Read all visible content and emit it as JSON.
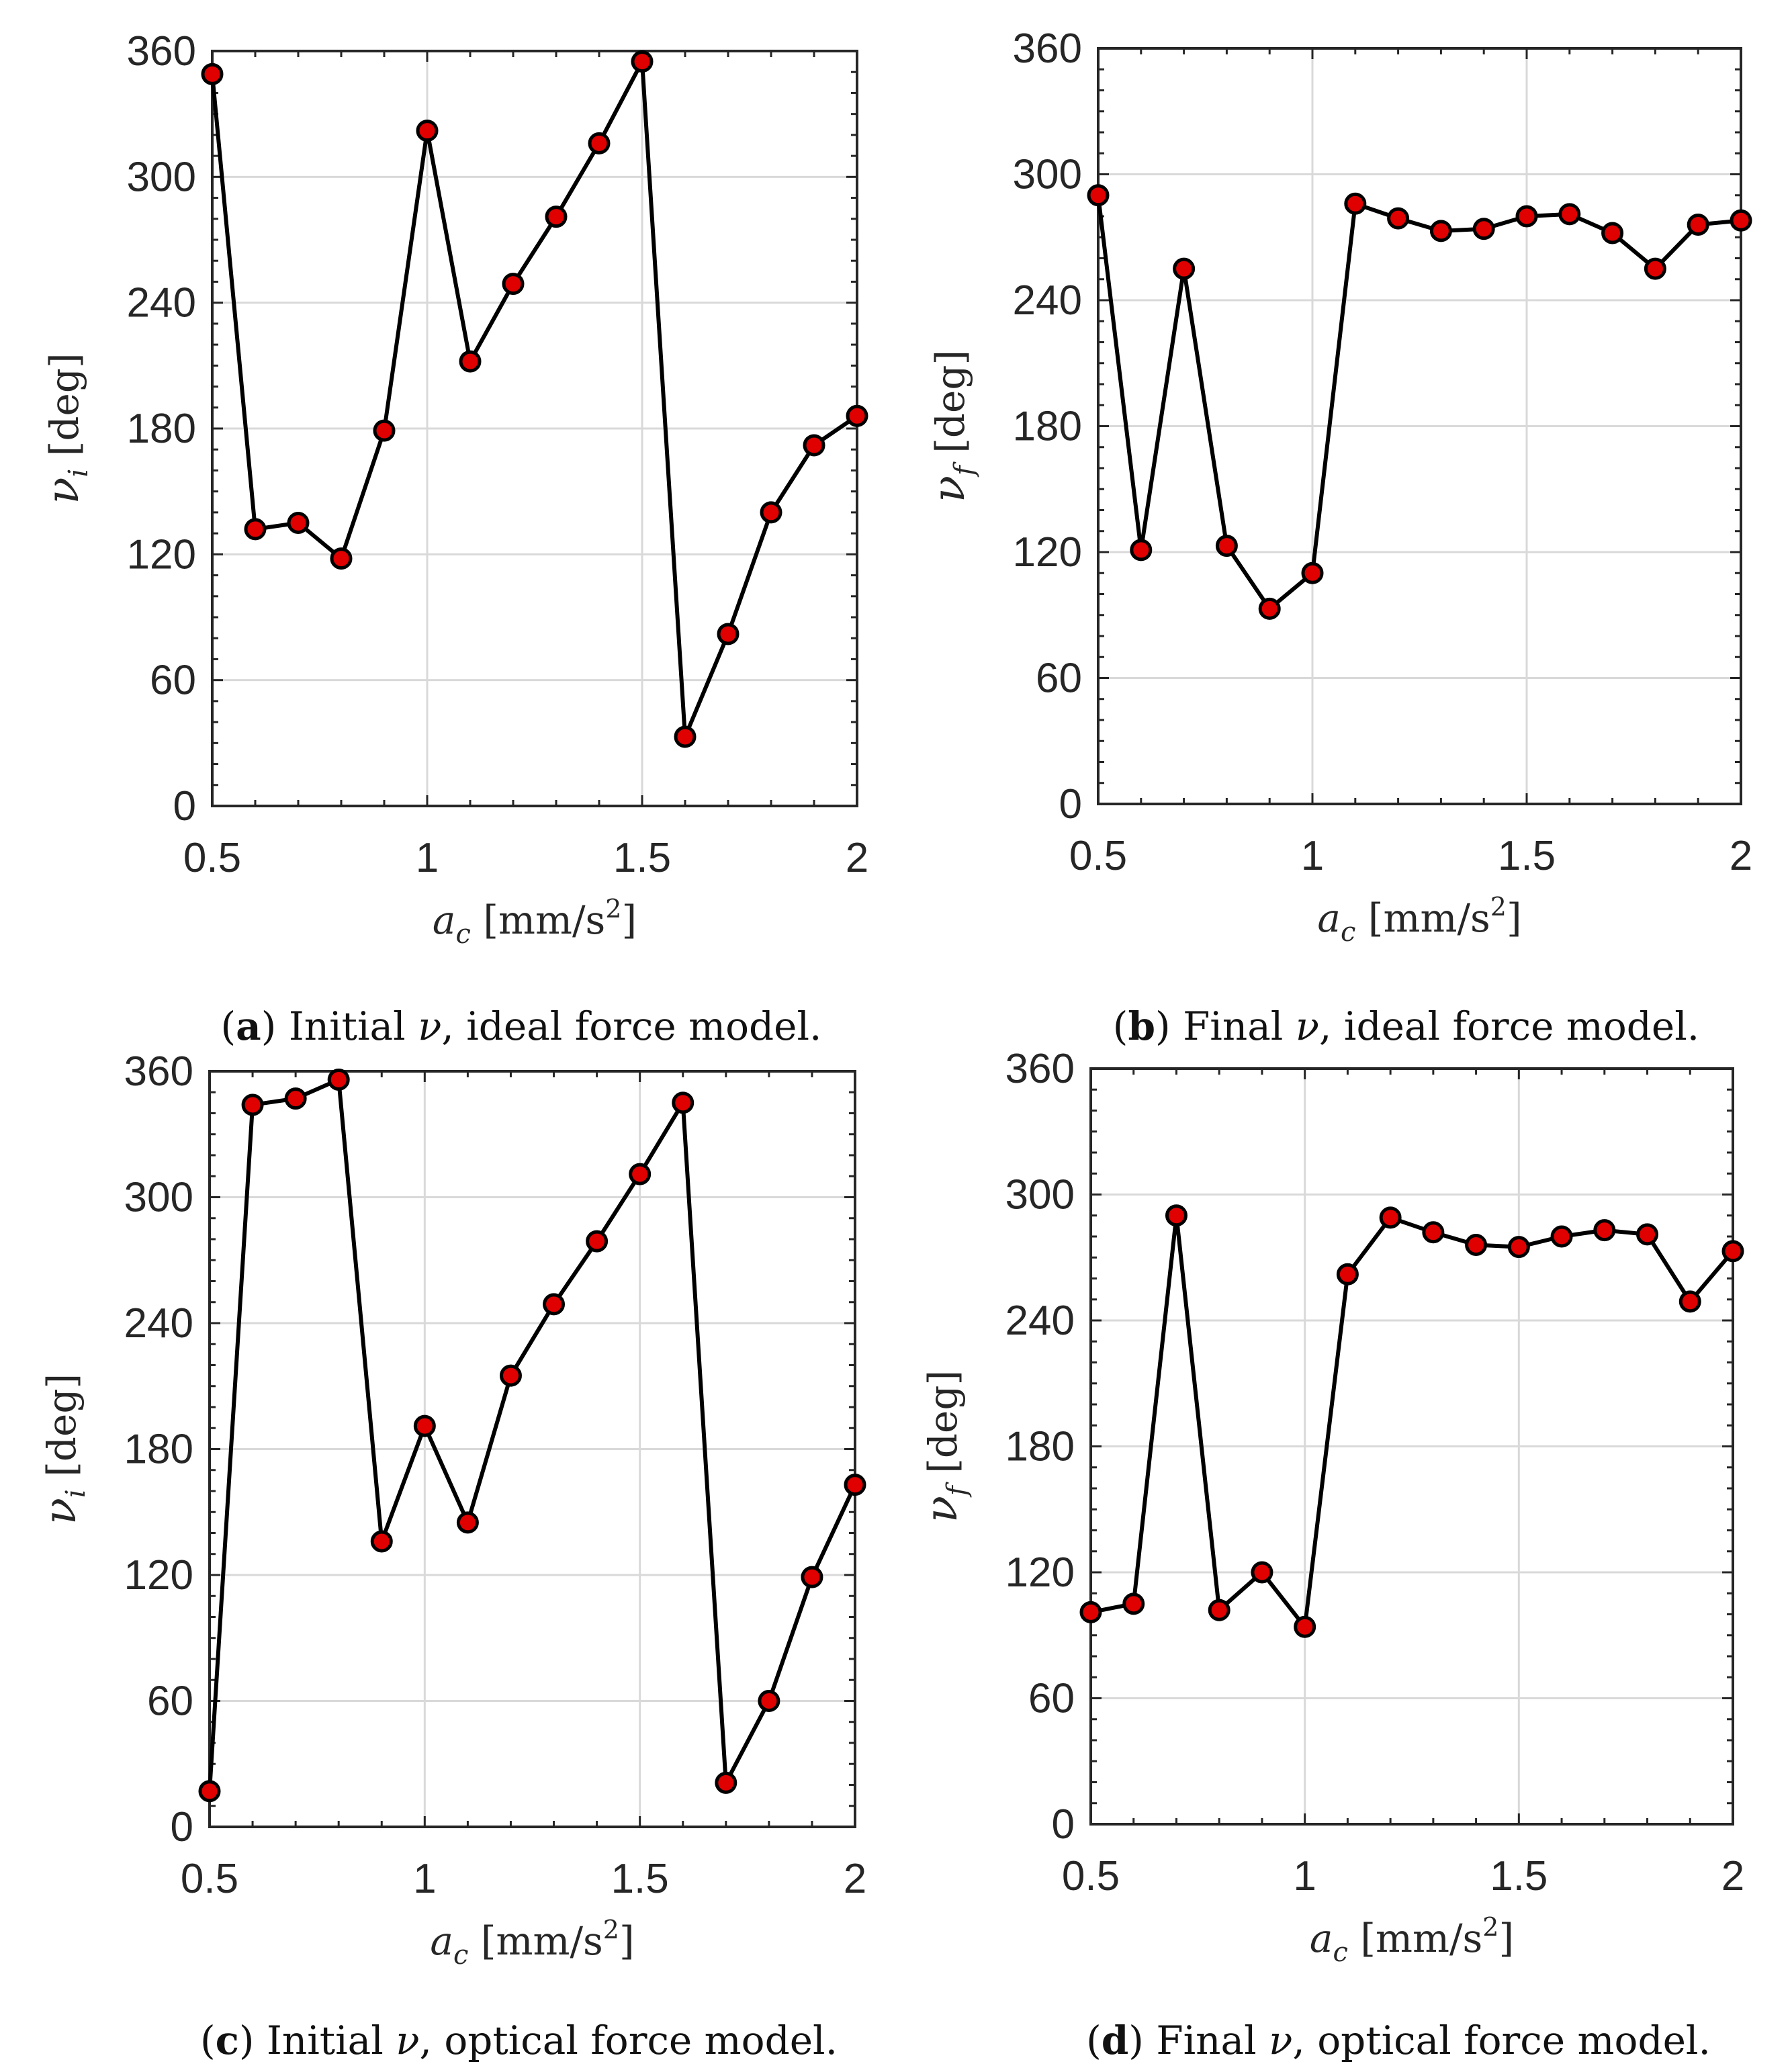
{
  "chart_data": [
    {
      "id": "a",
      "type": "line",
      "x": [
        0.5,
        0.6,
        0.7,
        0.8,
        0.9,
        1.0,
        1.1,
        1.2,
        1.3,
        1.4,
        1.5,
        1.6,
        1.7,
        1.8,
        1.9,
        2.0
      ],
      "series": [
        {
          "name": "nu_i",
          "values": [
            349,
            132,
            135,
            118,
            179,
            322,
            212,
            249,
            281,
            316,
            355,
            33,
            82,
            140,
            172,
            186
          ]
        }
      ],
      "xlim": [
        0.5,
        2
      ],
      "ylim": [
        0,
        360
      ],
      "xticks": [
        "0.5",
        "1",
        "1.5",
        "2"
      ],
      "yticks": [
        "0",
        "60",
        "120",
        "180",
        "240",
        "300",
        "360"
      ],
      "xlabel": {
        "symbol": "a",
        "sub": "c",
        "unit": "[mm/s",
        "sup": "2",
        "close": "]"
      },
      "ylabel": {
        "symbol": "ν",
        "sub": "i",
        "unit": "[deg]"
      },
      "caption": {
        "letter": "a",
        "before": "Initial ",
        "symbol": "ν",
        "after": ", ideal force model."
      },
      "grid": true
    },
    {
      "id": "b",
      "type": "line",
      "x": [
        0.5,
        0.6,
        0.7,
        0.8,
        0.9,
        1.0,
        1.1,
        1.2,
        1.3,
        1.4,
        1.5,
        1.6,
        1.7,
        1.8,
        1.9,
        2.0
      ],
      "series": [
        {
          "name": "nu_f",
          "values": [
            290,
            121,
            255,
            123,
            93,
            110,
            286,
            279,
            273,
            274,
            280,
            281,
            272,
            255,
            276,
            278
          ]
        }
      ],
      "xlim": [
        0.5,
        2
      ],
      "ylim": [
        0,
        360
      ],
      "xticks": [
        "0.5",
        "1",
        "1.5",
        "2"
      ],
      "yticks": [
        "0",
        "60",
        "120",
        "180",
        "240",
        "300",
        "360"
      ],
      "xlabel": {
        "symbol": "a",
        "sub": "c",
        "unit": "[mm/s",
        "sup": "2",
        "close": "]"
      },
      "ylabel": {
        "symbol": "ν",
        "sub": "f",
        "unit": "[deg]"
      },
      "caption": {
        "letter": "b",
        "before": "Final ",
        "symbol": "ν",
        "after": ", ideal force model."
      },
      "grid": true
    },
    {
      "id": "c",
      "type": "line",
      "x": [
        0.5,
        0.6,
        0.7,
        0.8,
        0.9,
        1.0,
        1.1,
        1.2,
        1.3,
        1.4,
        1.5,
        1.6,
        1.7,
        1.8,
        1.9,
        2.0
      ],
      "series": [
        {
          "name": "nu_i",
          "values": [
            17,
            344,
            347,
            356,
            136,
            191,
            145,
            215,
            249,
            279,
            311,
            345,
            21,
            60,
            119,
            163
          ]
        }
      ],
      "xlim": [
        0.5,
        2
      ],
      "ylim": [
        0,
        360
      ],
      "xticks": [
        "0.5",
        "1",
        "1.5",
        "2"
      ],
      "yticks": [
        "0",
        "60",
        "120",
        "180",
        "240",
        "300",
        "360"
      ],
      "xlabel": {
        "symbol": "a",
        "sub": "c",
        "unit": "[mm/s",
        "sup": "2",
        "close": "]"
      },
      "ylabel": {
        "symbol": "ν",
        "sub": "i",
        "unit": "[deg]"
      },
      "caption": {
        "letter": "c",
        "before": "Initial ",
        "symbol": "ν",
        "after": ", optical force model."
      },
      "grid": true
    },
    {
      "id": "d",
      "type": "line",
      "x": [
        0.5,
        0.6,
        0.7,
        0.8,
        0.9,
        1.0,
        1.1,
        1.2,
        1.3,
        1.4,
        1.5,
        1.6,
        1.7,
        1.8,
        1.9,
        2.0
      ],
      "series": [
        {
          "name": "nu_f",
          "values": [
            101,
            105,
            290,
            102,
            120,
            94,
            262,
            289,
            282,
            276,
            275,
            280,
            283,
            281,
            249,
            273
          ]
        }
      ],
      "xlim": [
        0.5,
        2
      ],
      "ylim": [
        0,
        360
      ],
      "xticks": [
        "0.5",
        "1",
        "1.5",
        "2"
      ],
      "yticks": [
        "0",
        "60",
        "120",
        "180",
        "240",
        "300",
        "360"
      ],
      "xlabel": {
        "symbol": "a",
        "sub": "c",
        "unit": "[mm/s",
        "sup": "2",
        "close": "]"
      },
      "ylabel": {
        "symbol": "ν",
        "sub": "f",
        "unit": "[deg]"
      },
      "caption": {
        "letter": "d",
        "before": "Final ",
        "symbol": "ν",
        "after": ", optical force model."
      },
      "grid": true
    }
  ]
}
